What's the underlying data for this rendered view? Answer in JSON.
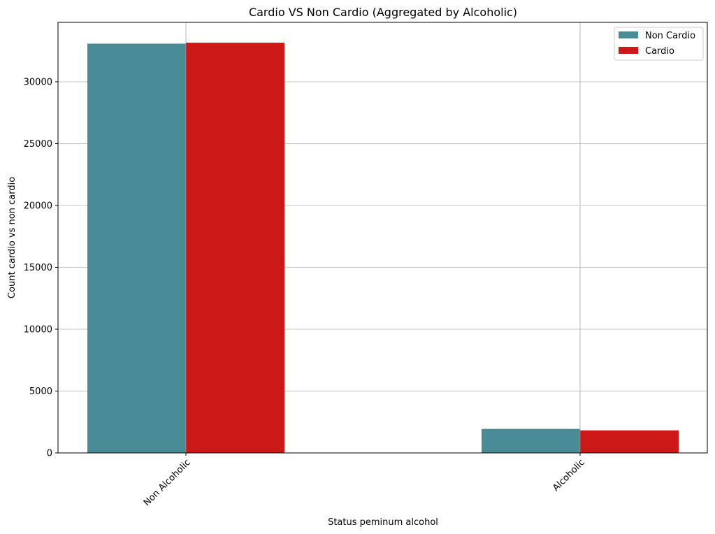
{
  "chart_data": {
    "type": "bar",
    "title": "Cardio VS Non Cardio  (Aggregated by Alcoholic)",
    "xlabel": "Status peminum alcohol",
    "ylabel": "Count cardio vs non cardio",
    "categories": [
      "Non Alcoholic",
      "Alcoholic"
    ],
    "series": [
      {
        "name": "Non Cardio",
        "values": [
          33080,
          1941
        ],
        "color": "#498c98"
      },
      {
        "name": "Cardio",
        "values": [
          33156,
          1823
        ],
        "color": "#cd1818"
      }
    ],
    "ylim": [
      0,
      34800
    ],
    "yticks": [
      0,
      5000,
      10000,
      15000,
      20000,
      25000,
      30000
    ],
    "grid": true,
    "legend_position": "top-right"
  }
}
